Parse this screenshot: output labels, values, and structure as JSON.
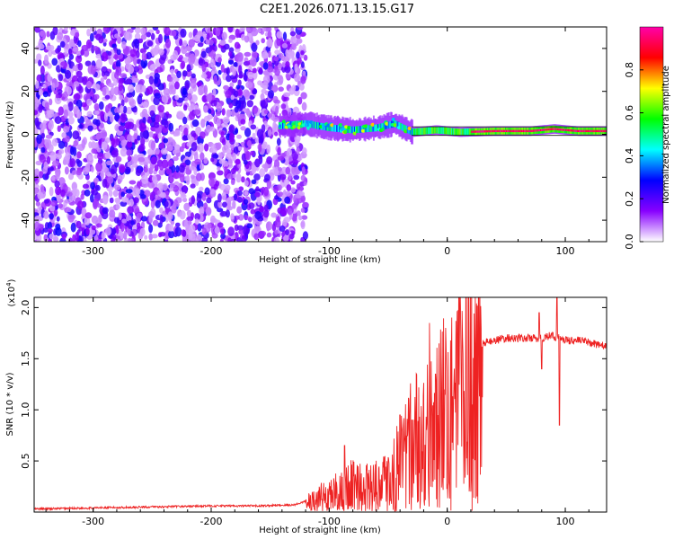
{
  "title": "C2E1.2026.071.13.15.G17",
  "chart_data": [
    {
      "type": "heatmap",
      "name": "spectrogram",
      "xlabel": "Height of straight line (km)",
      "ylabel": "Frequency (Hz)",
      "xlim": [
        -350,
        135
      ],
      "ylim": [
        -50,
        50
      ],
      "xticks": [
        -300,
        -200,
        -100,
        0,
        100
      ],
      "xtick_labels": [
        "-300",
        "-200",
        "-100",
        "0",
        "100"
      ],
      "yticks": [
        -40,
        -20,
        0,
        20,
        40
      ],
      "ytick_labels": [
        "-40",
        "-20",
        "0",
        "20",
        "40"
      ],
      "colorbar": {
        "label": "Normalized spectral amplitude",
        "range": [
          0,
          1
        ],
        "ticks": [
          0.0,
          0.2,
          0.4,
          0.6,
          0.8
        ],
        "tick_labels": [
          "0.0",
          "0.2",
          "0.4",
          "0.6",
          "0.8"
        ],
        "colormap": [
          "#ffffff",
          "#8800ff",
          "#0000ff",
          "#00ffff",
          "#00ff00",
          "#ffff00",
          "#ff0000",
          "#ff00aa"
        ]
      },
      "regions": [
        {
          "desc": "noise scatter",
          "x_range": [
            -350,
            -130
          ],
          "y_range": [
            -50,
            50
          ],
          "amplitude": [
            0.0,
            0.25
          ]
        },
        {
          "desc": "signal band",
          "x_range": [
            -143,
            135
          ],
          "y_center": 1.5,
          "amplitude": [
            0.3,
            1.0
          ]
        }
      ],
      "signal_centerline": {
        "x": [
          -143,
          -120,
          -100,
          -80,
          -60,
          -45,
          -30,
          -10,
          10,
          40,
          70,
          90,
          110,
          135
        ],
        "freq": [
          4,
          5,
          3,
          2,
          3,
          5,
          1,
          2,
          1,
          1.5,
          1.5,
          2.5,
          1.5,
          1.5
        ]
      }
    },
    {
      "type": "line",
      "name": "snr",
      "xlabel": "Height of straight line (km)",
      "ylabel": "SNR (10 * v/v)",
      "y_multiplier_label": "(x10",
      "y_multiplier_exp": "4",
      "y_multiplier_close": ")",
      "xlim": [
        -350,
        135
      ],
      "ylim": [
        0,
        2.1
      ],
      "xticks": [
        -300,
        -200,
        -100,
        0,
        100
      ],
      "xtick_labels": [
        "-300",
        "-200",
        "-100",
        "0",
        "100"
      ],
      "yticks": [
        0.5,
        1.0,
        1.5,
        2.0
      ],
      "ytick_labels": [
        "0.5",
        "1.0",
        "1.5",
        "2.0"
      ],
      "color": "#ee2222",
      "series": [
        {
          "name": "SNR",
          "x": [
            -350,
            -300,
            -250,
            -200,
            -160,
            -130,
            -115,
            -100,
            -90,
            -80,
            -70,
            -60,
            -50,
            -40,
            -30,
            -20,
            -10,
            0,
            10,
            20,
            30,
            40,
            50,
            60,
            70,
            80,
            85,
            90,
            95,
            100,
            110,
            120,
            135
          ],
          "y": [
            0.03,
            0.04,
            0.05,
            0.06,
            0.06,
            0.07,
            0.12,
            0.2,
            0.25,
            0.3,
            0.28,
            0.3,
            0.35,
            0.55,
            0.75,
            0.85,
            1.0,
            1.15,
            1.35,
            1.55,
            1.65,
            1.68,
            1.7,
            1.7,
            1.7,
            1.7,
            1.72,
            1.72,
            1.7,
            1.68,
            1.68,
            1.66,
            1.62
          ]
        }
      ],
      "spikes": [
        {
          "x": -87,
          "y": 0.65
        },
        {
          "x": -40,
          "y": 0.95
        },
        {
          "x": -30,
          "y": 0.9
        },
        {
          "x": -15,
          "y": 1.85
        },
        {
          "x": -10,
          "y": 1.35
        },
        {
          "x": 78,
          "y": 1.95
        },
        {
          "x": 80,
          "y": 1.4
        },
        {
          "x": 93,
          "y": 2.1
        },
        {
          "x": 95,
          "y": 0.85
        }
      ]
    }
  ]
}
